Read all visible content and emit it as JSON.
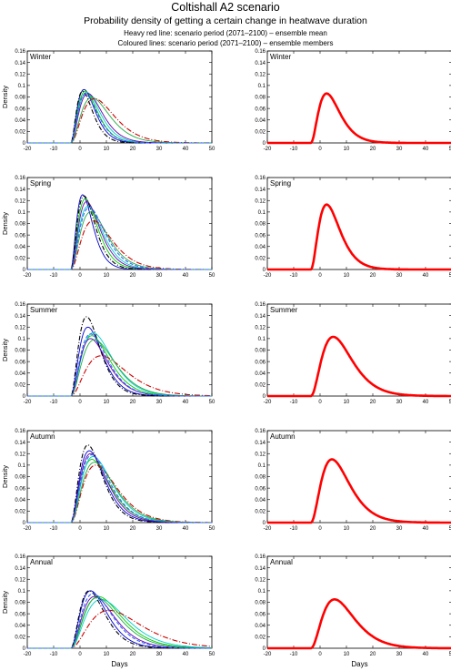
{
  "title": "Coltishall A2 scenario",
  "subtitle": "Probability density of getting a certain change in heatwave duration",
  "notes": [
    "Heavy red line: scenario period (2071–2100) – ensemble mean",
    "Coloured lines: scenario period (2071–2100) – ensemble members"
  ],
  "colors": {
    "mean": "#ff0000",
    "members": [
      "#0000cc",
      "#00cc00",
      "#00cccc",
      "#000000",
      "#6600aa",
      "#cc0000",
      "#22aa44",
      "#3366ff"
    ]
  },
  "chart_data": [
    {
      "type": "line",
      "panel": "Winter",
      "column": "members",
      "xlabel": "",
      "ylabel": "Density",
      "xlim": [
        -20,
        50
      ],
      "ylim": [
        0,
        0.16
      ],
      "xticks": [
        -20,
        -10,
        0,
        10,
        20,
        30,
        40,
        50
      ],
      "yticks": [
        0,
        0.02,
        0.04,
        0.06,
        0.08,
        0.1,
        0.12,
        0.14,
        0.16
      ],
      "members": [
        {
          "mode": 1.5,
          "peak": 0.093
        },
        {
          "mode": 2,
          "peak": 0.09
        },
        {
          "mode": 2.5,
          "peak": 0.088
        },
        {
          "mode": 1,
          "peak": 0.09
        },
        {
          "mode": 3,
          "peak": 0.086
        },
        {
          "mode": 5.5,
          "peak": 0.077
        },
        {
          "mode": 4.5,
          "peak": 0.079
        },
        {
          "mode": 2,
          "peak": 0.085
        }
      ]
    },
    {
      "type": "line",
      "panel": "Winter",
      "column": "mean",
      "xlabel": "",
      "ylabel": "",
      "xlim": [
        -20,
        50
      ],
      "ylim": [
        0,
        0.16
      ],
      "xticks": [
        -20,
        -10,
        0,
        10,
        20,
        30,
        40,
        50
      ],
      "yticks": [
        0,
        0.02,
        0.04,
        0.06,
        0.08,
        0.1,
        0.12,
        0.14,
        0.16
      ],
      "mean": {
        "mode": 2.5,
        "peak": 0.086
      }
    },
    {
      "type": "line",
      "panel": "Spring",
      "column": "members",
      "xlabel": "",
      "ylabel": "Density",
      "xlim": [
        -20,
        50
      ],
      "ylim": [
        0,
        0.16
      ],
      "xticks": [
        -20,
        -10,
        0,
        10,
        20,
        30,
        40,
        50
      ],
      "yticks": [
        0,
        0.02,
        0.04,
        0.06,
        0.08,
        0.1,
        0.12,
        0.14,
        0.16
      ],
      "members": [
        {
          "mode": 1,
          "peak": 0.13
        },
        {
          "mode": 2,
          "peak": 0.123
        },
        {
          "mode": 3,
          "peak": 0.11
        },
        {
          "mode": 1.5,
          "peak": 0.128
        },
        {
          "mode": 2.5,
          "peak": 0.118
        },
        {
          "mode": 5,
          "peak": 0.085
        },
        {
          "mode": 4,
          "peak": 0.1
        },
        {
          "mode": 3.5,
          "peak": 0.108
        }
      ]
    },
    {
      "type": "line",
      "panel": "Spring",
      "column": "mean",
      "xlabel": "",
      "ylabel": "",
      "xlim": [
        -20,
        50
      ],
      "ylim": [
        0,
        0.16
      ],
      "xticks": [
        -20,
        -10,
        0,
        10,
        20,
        30,
        40,
        50
      ],
      "yticks": [
        0,
        0.02,
        0.04,
        0.06,
        0.08,
        0.1,
        0.12,
        0.14,
        0.16
      ],
      "mean": {
        "mode": 2.5,
        "peak": 0.113
      }
    },
    {
      "type": "line",
      "panel": "Summer",
      "column": "members",
      "xlabel": "",
      "ylabel": "Density",
      "xlim": [
        -20,
        50
      ],
      "ylim": [
        0,
        0.16
      ],
      "xticks": [
        -20,
        -10,
        0,
        10,
        20,
        30,
        40,
        50
      ],
      "yticks": [
        0,
        0.02,
        0.04,
        0.06,
        0.08,
        0.1,
        0.12,
        0.14,
        0.16
      ],
      "members": [
        {
          "mode": 3,
          "peak": 0.12
        },
        {
          "mode": 4.5,
          "peak": 0.105
        },
        {
          "mode": 5,
          "peak": 0.11
        },
        {
          "mode": 2.5,
          "peak": 0.138
        },
        {
          "mode": 4,
          "peak": 0.1
        },
        {
          "mode": 8,
          "peak": 0.07
        },
        {
          "mode": 5.5,
          "peak": 0.098
        },
        {
          "mode": 4,
          "peak": 0.108
        }
      ]
    },
    {
      "type": "line",
      "panel": "Summer",
      "column": "mean",
      "xlabel": "",
      "ylabel": "",
      "xlim": [
        -20,
        50
      ],
      "ylim": [
        0,
        0.16
      ],
      "xticks": [
        -20,
        -10,
        0,
        10,
        20,
        30,
        40,
        50
      ],
      "yticks": [
        0,
        0.02,
        0.04,
        0.06,
        0.08,
        0.1,
        0.12,
        0.14,
        0.16
      ],
      "mean": {
        "mode": 5,
        "peak": 0.103
      }
    },
    {
      "type": "line",
      "panel": "Autumn",
      "column": "members",
      "xlabel": "",
      "ylabel": "Density",
      "xlim": [
        -20,
        50
      ],
      "ylim": [
        0,
        0.16
      ],
      "xticks": [
        -20,
        -10,
        0,
        10,
        20,
        30,
        40,
        50
      ],
      "yticks": [
        0,
        0.02,
        0.04,
        0.06,
        0.08,
        0.1,
        0.12,
        0.14,
        0.16
      ],
      "members": [
        {
          "mode": 3.5,
          "peak": 0.125
        },
        {
          "mode": 4.5,
          "peak": 0.11
        },
        {
          "mode": 5,
          "peak": 0.115
        },
        {
          "mode": 3,
          "peak": 0.135
        },
        {
          "mode": 4,
          "peak": 0.12
        },
        {
          "mode": 6,
          "peak": 0.1
        },
        {
          "mode": 5.5,
          "peak": 0.105
        },
        {
          "mode": 4.5,
          "peak": 0.118
        }
      ]
    },
    {
      "type": "line",
      "panel": "Autumn",
      "column": "mean",
      "xlabel": "",
      "ylabel": "",
      "xlim": [
        -20,
        50
      ],
      "ylim": [
        0,
        0.16
      ],
      "xticks": [
        -20,
        -10,
        0,
        10,
        20,
        30,
        40,
        50
      ],
      "yticks": [
        0,
        0.02,
        0.04,
        0.06,
        0.08,
        0.1,
        0.12,
        0.14,
        0.16
      ],
      "mean": {
        "mode": 4.5,
        "peak": 0.11
      }
    },
    {
      "type": "line",
      "panel": "Annual",
      "column": "members",
      "xlabel": "Days",
      "ylabel": "Density",
      "xlim": [
        -20,
        50
      ],
      "ylim": [
        0,
        0.16
      ],
      "xticks": [
        -20,
        -10,
        0,
        10,
        20,
        30,
        40,
        50
      ],
      "yticks": [
        0,
        0.02,
        0.04,
        0.06,
        0.08,
        0.1,
        0.12,
        0.14,
        0.16
      ],
      "members": [
        {
          "mode": 4,
          "peak": 0.1
        },
        {
          "mode": 7,
          "peak": 0.09
        },
        {
          "mode": 8,
          "peak": 0.085
        },
        {
          "mode": 3.5,
          "peak": 0.1
        },
        {
          "mode": 5.5,
          "peak": 0.09
        },
        {
          "mode": 11,
          "peak": 0.066
        },
        {
          "mode": 6.5,
          "peak": 0.088
        },
        {
          "mode": 5,
          "peak": 0.095
        }
      ]
    },
    {
      "type": "line",
      "panel": "Annual",
      "column": "mean",
      "xlabel": "Days",
      "ylabel": "",
      "xlim": [
        -20,
        50
      ],
      "ylim": [
        0,
        0.16
      ],
      "xticks": [
        -20,
        -10,
        0,
        10,
        20,
        30,
        40,
        50
      ],
      "yticks": [
        0,
        0.02,
        0.04,
        0.06,
        0.08,
        0.1,
        0.12,
        0.14,
        0.16
      ],
      "mean": {
        "mode": 5.5,
        "peak": 0.085
      }
    }
  ]
}
